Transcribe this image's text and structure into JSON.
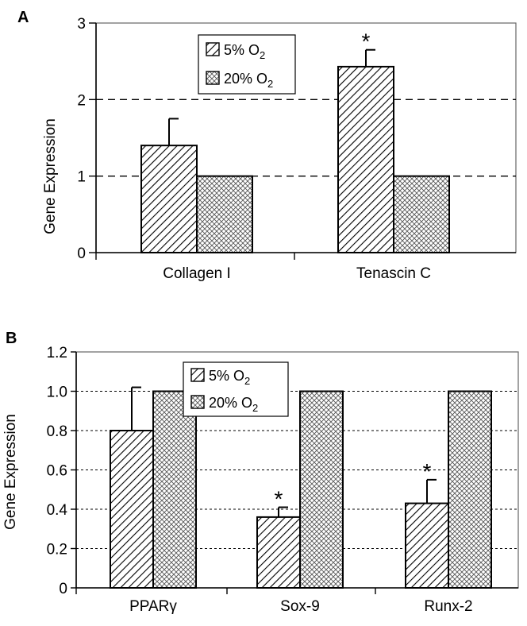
{
  "chart_data": [
    {
      "panel": "A",
      "type": "bar",
      "ylabel": "Gene Expression",
      "ylim": [
        0,
        3
      ],
      "yticks": [
        "0",
        "1",
        "2",
        "3"
      ],
      "grid": "dashed-horizontal",
      "legend_position": "top-center",
      "categories": [
        "Collagen I",
        "Tenascin C"
      ],
      "series": [
        {
          "name": "5% O2",
          "legend_main": "5% O",
          "legend_sub": "2",
          "pattern": "diagonal",
          "values": [
            1.4,
            2.43
          ],
          "errors": [
            0.35,
            0.22
          ],
          "significant": [
            false,
            true
          ]
        },
        {
          "name": "20% O2",
          "legend_main": "20% O",
          "legend_sub": "2",
          "pattern": "crosshatch",
          "values": [
            1.0,
            1.0
          ],
          "errors": [
            0,
            0
          ],
          "significant": [
            false,
            false
          ]
        }
      ],
      "significance_marker": "*"
    },
    {
      "panel": "B",
      "type": "bar",
      "ylabel": "Gene Expression",
      "ylim": [
        0,
        1.2
      ],
      "yticks": [
        "0",
        "0.2",
        "0.4",
        "0.6",
        "0.8",
        "1.0",
        "1.2"
      ],
      "grid": "dotted-horizontal",
      "legend_position": "top-center",
      "categories": [
        "PPARγ",
        "Sox-9",
        "Runx-2"
      ],
      "series": [
        {
          "name": "5% O2",
          "legend_main": "5% O",
          "legend_sub": "2",
          "pattern": "diagonal",
          "values": [
            0.8,
            0.36,
            0.43
          ],
          "errors": [
            0.22,
            0.05,
            0.12
          ],
          "significant": [
            false,
            true,
            true
          ]
        },
        {
          "name": "20% O2",
          "legend_main": "20% O",
          "legend_sub": "2",
          "pattern": "crosshatch",
          "values": [
            1.0,
            1.0,
            1.0
          ],
          "errors": [
            0,
            0,
            0
          ],
          "significant": [
            false,
            false,
            false
          ]
        }
      ],
      "significance_marker": "*"
    }
  ]
}
